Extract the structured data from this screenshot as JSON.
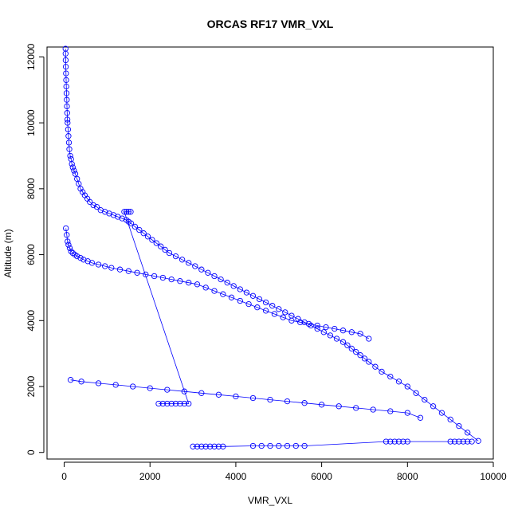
{
  "chart_data": {
    "type": "scatter",
    "title": "ORCAS RF17 VMR_VXL",
    "xlabel": "VMR_VXL",
    "ylabel": "Altitude (m)",
    "xlim": [
      -400,
      10000
    ],
    "ylim": [
      -200,
      12300
    ],
    "xticks": [
      0,
      2000,
      4000,
      6000,
      8000,
      10000
    ],
    "yticks": [
      0,
      2000,
      4000,
      6000,
      8000,
      10000,
      12000
    ],
    "xtick_labels": [
      "0",
      "2000",
      "4000",
      "6000",
      "8000",
      "10000"
    ],
    "ytick_labels": [
      "0",
      "2000",
      "4000",
      "6000",
      "8000",
      "10000",
      "12000"
    ],
    "grid": false,
    "legend": "none",
    "marker": "open-circle",
    "connected": true,
    "color": "#0000ff",
    "series": [
      {
        "x": [
          30,
          32,
          35,
          38,
          42,
          45,
          50,
          55,
          60,
          65,
          70,
          75,
          80,
          90,
          100,
          110,
          120,
          140,
          160,
          180,
          200,
          230,
          260,
          300,
          340,
          380,
          430,
          480,
          540,
          600,
          680,
          760,
          850,
          950,
          1050,
          1150,
          1250,
          1350,
          1450,
          1500,
          1560,
          1650,
          1750,
          1850,
          1950,
          2050,
          2150,
          2250,
          2350,
          2450,
          2600,
          2750,
          2900,
          3050,
          3200,
          3350,
          3500,
          3650,
          3800,
          3950,
          4100,
          4250,
          4400,
          4550,
          4700,
          4850,
          5000,
          5150,
          5300,
          5450,
          5600,
          5750,
          5900,
          6050,
          6200,
          6350,
          6500,
          6600,
          6700,
          6800,
          6900,
          7000,
          7100,
          7250,
          7400,
          7600,
          7800,
          8000,
          8200,
          8400,
          8600,
          8800,
          9000,
          9200,
          9400,
          9650
        ],
        "y": [
          12250,
          12100,
          11900,
          11700,
          11500,
          11300,
          11100,
          10900,
          10700,
          10500,
          10300,
          10100,
          10000,
          9800,
          9600,
          9400,
          9200,
          9000,
          8900,
          8750,
          8650,
          8550,
          8450,
          8300,
          8150,
          8000,
          7900,
          7800,
          7700,
          7600,
          7500,
          7450,
          7350,
          7300,
          7250,
          7200,
          7150,
          7100,
          7050,
          7000,
          6950,
          6850,
          6750,
          6650,
          6550,
          6450,
          6350,
          6250,
          6150,
          6050,
          5950,
          5850,
          5750,
          5650,
          5550,
          5450,
          5350,
          5250,
          5150,
          5050,
          4950,
          4850,
          4750,
          4650,
          4550,
          4450,
          4350,
          4250,
          4150,
          4050,
          3950,
          3850,
          3750,
          3650,
          3550,
          3450,
          3350,
          3250,
          3150,
          3050,
          2950,
          2850,
          2750,
          2600,
          2450,
          2300,
          2150,
          2000,
          1800,
          1600,
          1400,
          1200,
          1000,
          800,
          600,
          350
        ]
      },
      {
        "x": [
          40,
          60,
          80,
          100,
          130,
          160,
          200,
          250,
          300,
          380,
          450,
          550,
          650,
          800,
          950,
          1100,
          1300,
          1500,
          1700,
          1900,
          2100,
          2300,
          2500,
          2700,
          2900,
          3100,
          3300,
          3500,
          3700,
          3900,
          4100,
          4300,
          4500,
          4700,
          4900,
          5100,
          5300,
          5500,
          5700,
          5900,
          6100,
          6300,
          6500,
          6700,
          6900,
          7100
        ],
        "y": [
          6800,
          6600,
          6400,
          6300,
          6200,
          6100,
          6050,
          6000,
          5950,
          5900,
          5850,
          5800,
          5750,
          5700,
          5650,
          5600,
          5550,
          5500,
          5450,
          5400,
          5350,
          5300,
          5250,
          5200,
          5150,
          5100,
          5000,
          4900,
          4800,
          4700,
          4600,
          4500,
          4400,
          4300,
          4200,
          4100,
          4000,
          3950,
          3900,
          3850,
          3800,
          3750,
          3700,
          3650,
          3600,
          3450
        ]
      },
      {
        "x": [
          150,
          400,
          800,
          1200,
          1600,
          2000,
          2400,
          2800,
          3200,
          3600,
          4000,
          4400,
          4800,
          5200,
          5600,
          6000,
          6400,
          6800,
          7200,
          7600,
          8000,
          8300
        ],
        "y": [
          2200,
          2150,
          2100,
          2050,
          2000,
          1950,
          1900,
          1850,
          1800,
          1750,
          1700,
          1650,
          1600,
          1550,
          1500,
          1450,
          1400,
          1350,
          1300,
          1250,
          1200,
          1050
        ]
      },
      {
        "x": [
          3000,
          3100,
          3200,
          3300,
          3400,
          3500,
          3600,
          3700,
          4400,
          4600,
          4800,
          5000,
          5200,
          5400,
          5600,
          7500,
          7600,
          7700,
          7800,
          7900,
          8000,
          9000,
          9100,
          9200,
          9300,
          9400,
          9500
        ],
        "y": [
          180,
          180,
          180,
          180,
          180,
          180,
          180,
          180,
          200,
          200,
          200,
          200,
          200,
          200,
          200,
          330,
          330,
          330,
          330,
          330,
          330,
          330,
          330,
          330,
          330,
          330,
          330
        ]
      },
      {
        "x": [
          2200,
          2300,
          2400,
          2500,
          2600,
          2700,
          2800,
          2900,
          1400,
          1450,
          1500,
          1550
        ],
        "y": [
          1480,
          1480,
          1480,
          1480,
          1480,
          1480,
          1480,
          1480,
          7300,
          7300,
          7300,
          7300
        ]
      }
    ]
  }
}
